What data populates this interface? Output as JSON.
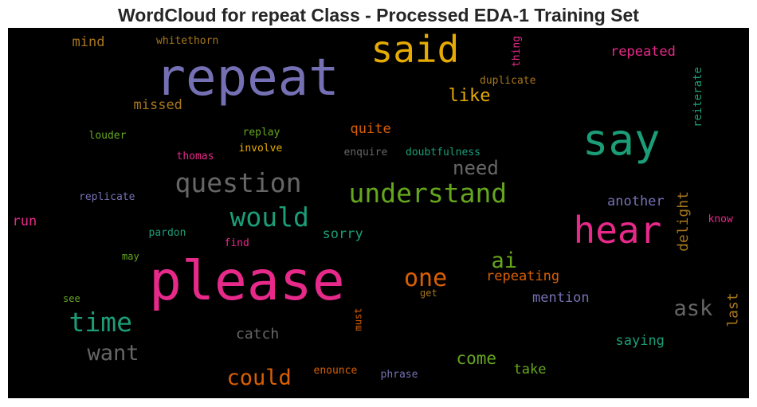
{
  "chart_data": {
    "type": "wordcloud",
    "title": "WordCloud for repeat Class - Processed EDA-1 Training Set",
    "colormap": [
      "#1b9e77",
      "#d95f02",
      "#7570b3",
      "#e7298a",
      "#66a61e",
      "#e6ab02",
      "#a6761d",
      "#666666"
    ],
    "words": [
      {
        "text": "please",
        "color": "#e7298a",
        "vertical": false
      },
      {
        "text": "repeat",
        "color": "#7570b3",
        "vertical": false
      },
      {
        "text": "say",
        "color": "#1b9e77",
        "vertical": false
      },
      {
        "text": "hear",
        "color": "#e7298a",
        "vertical": false
      },
      {
        "text": "said",
        "color": "#e6ab02",
        "vertical": false
      },
      {
        "text": "understand",
        "color": "#66a61e",
        "vertical": false
      },
      {
        "text": "question",
        "color": "#666666",
        "vertical": false
      },
      {
        "text": "would",
        "color": "#1b9e77",
        "vertical": false
      },
      {
        "text": "time",
        "color": "#1b9e77",
        "vertical": false
      },
      {
        "text": "one",
        "color": "#d95f02",
        "vertical": false
      },
      {
        "text": "want",
        "color": "#666666",
        "vertical": false
      },
      {
        "text": "could",
        "color": "#d95f02",
        "vertical": false
      },
      {
        "text": "ai",
        "color": "#66a61e",
        "vertical": false
      },
      {
        "text": "ask",
        "color": "#666666",
        "vertical": false
      },
      {
        "text": "need",
        "color": "#666666",
        "vertical": false
      },
      {
        "text": "like",
        "color": "#e6ab02",
        "vertical": false
      },
      {
        "text": "come",
        "color": "#66a61e",
        "vertical": false
      },
      {
        "text": "repeated",
        "color": "#e7298a",
        "vertical": false
      },
      {
        "text": "repeating",
        "color": "#d95f02",
        "vertical": false
      },
      {
        "text": "mention",
        "color": "#7570b3",
        "vertical": false
      },
      {
        "text": "another",
        "color": "#7570b3",
        "vertical": false
      },
      {
        "text": "saying",
        "color": "#1b9e77",
        "vertical": false
      },
      {
        "text": "take",
        "color": "#66a61e",
        "vertical": false
      },
      {
        "text": "catch",
        "color": "#666666",
        "vertical": false
      },
      {
        "text": "sorry",
        "color": "#1b9e77",
        "vertical": false
      },
      {
        "text": "quite",
        "color": "#d95f02",
        "vertical": false
      },
      {
        "text": "missed",
        "color": "#a6761d",
        "vertical": false
      },
      {
        "text": "mind",
        "color": "#a6761d",
        "vertical": false
      },
      {
        "text": "run",
        "color": "#e7298a",
        "vertical": false
      },
      {
        "text": "delight",
        "color": "#a6761d",
        "vertical": true
      },
      {
        "text": "last",
        "color": "#a6761d",
        "vertical": true
      },
      {
        "text": "reiterate",
        "color": "#1b9e77",
        "vertical": true
      },
      {
        "text": "thing",
        "color": "#e7298a",
        "vertical": true
      },
      {
        "text": "must",
        "color": "#d95f02",
        "vertical": true
      },
      {
        "text": "whitethorn",
        "color": "#a6761d",
        "vertical": false
      },
      {
        "text": "duplicate",
        "color": "#a6761d",
        "vertical": false
      },
      {
        "text": "replay",
        "color": "#66a61e",
        "vertical": false
      },
      {
        "text": "louder",
        "color": "#66a61e",
        "vertical": false
      },
      {
        "text": "involve",
        "color": "#e6ab02",
        "vertical": false
      },
      {
        "text": "thomas",
        "color": "#e7298a",
        "vertical": false
      },
      {
        "text": "enquire",
        "color": "#666666",
        "vertical": false
      },
      {
        "text": "doubtfulness",
        "color": "#1b9e77",
        "vertical": false
      },
      {
        "text": "replicate",
        "color": "#7570b3",
        "vertical": false
      },
      {
        "text": "pardon",
        "color": "#1b9e77",
        "vertical": false
      },
      {
        "text": "find",
        "color": "#e7298a",
        "vertical": false
      },
      {
        "text": "know",
        "color": "#e7298a",
        "vertical": false
      },
      {
        "text": "may",
        "color": "#66a61e",
        "vertical": false
      },
      {
        "text": "see",
        "color": "#66a61e",
        "vertical": false
      },
      {
        "text": "get",
        "color": "#a6761d",
        "vertical": false
      },
      {
        "text": "enounce",
        "color": "#d95f02",
        "vertical": false
      },
      {
        "text": "phrase",
        "color": "#7570b3",
        "vertical": false
      }
    ]
  }
}
